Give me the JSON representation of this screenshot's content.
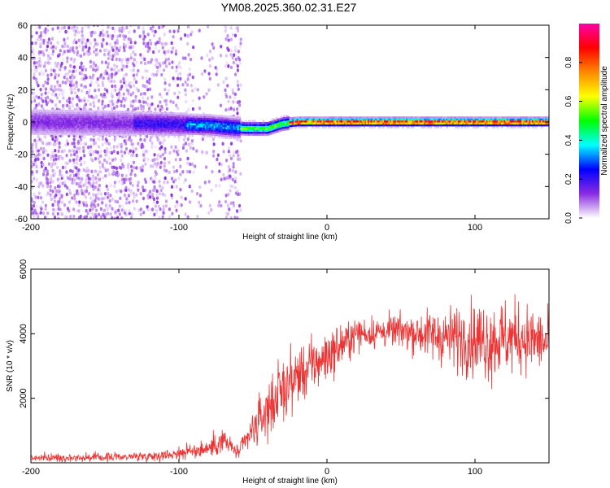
{
  "title": "YM08.2025.360.02.31.E27",
  "chart_data": [
    {
      "type": "heatmap",
      "title": "YM08.2025.360.02.31.E27",
      "xlabel": "Height of straight line (km)",
      "ylabel": "Frequency (Hz)",
      "xlim": [
        -200,
        150
      ],
      "ylim": [
        -60,
        60
      ],
      "xticks": [
        -200,
        -100,
        0,
        100
      ],
      "yticks": [
        -60,
        -40,
        -20,
        0,
        20,
        40,
        60
      ],
      "colorbar": {
        "label": "Normalized spectral amplitude",
        "range": [
          0,
          1
        ],
        "ticks": [
          0.0,
          0.2,
          0.4,
          0.6,
          0.8
        ],
        "tick_labels": [
          "0.0",
          "0.2",
          "0.4",
          "0.6",
          "0.8"
        ],
        "colormap": [
          "#ffffff",
          "#8a2be2",
          "#0000ff",
          "#00ffff",
          "#00ff00",
          "#ffff00",
          "#ff8800",
          "#ff0000",
          "#ff00aa"
        ]
      },
      "features": {
        "noise_region_km": [
          -200,
          -58
        ],
        "signal_start_km": -55,
        "signal_ridge_points": [
          {
            "x": -200,
            "y": 0
          },
          {
            "x": -120,
            "y": -1
          },
          {
            "x": -80,
            "y": -2
          },
          {
            "x": -55,
            "y": -4
          },
          {
            "x": -40,
            "y": -4
          },
          {
            "x": -30,
            "y": -1
          },
          {
            "x": -20,
            "y": 0
          },
          {
            "x": 150,
            "y": 0
          }
        ]
      }
    },
    {
      "type": "line",
      "xlabel": "Height of straight line (km)",
      "ylabel": "SNR (10 * v/v)",
      "xlim": [
        -200,
        150
      ],
      "ylim": [
        0,
        6000
      ],
      "xticks": [
        -200,
        -100,
        0,
        100
      ],
      "yticks": [
        2000,
        4000,
        6000
      ],
      "series": [
        {
          "name": "SNR",
          "color": "#ee3333",
          "envelope": [
            {
              "x": -200,
              "mean": 150,
              "spread": 120
            },
            {
              "x": -150,
              "mean": 170,
              "spread": 130
            },
            {
              "x": -110,
              "mean": 230,
              "spread": 150
            },
            {
              "x": -80,
              "mean": 450,
              "spread": 300
            },
            {
              "x": -70,
              "mean": 700,
              "spread": 400
            },
            {
              "x": -60,
              "mean": 300,
              "spread": 200
            },
            {
              "x": -50,
              "mean": 1000,
              "spread": 600
            },
            {
              "x": -35,
              "mean": 2000,
              "spread": 1000
            },
            {
              "x": -20,
              "mean": 2700,
              "spread": 900
            },
            {
              "x": 0,
              "mean": 3300,
              "spread": 800
            },
            {
              "x": 20,
              "mean": 4000,
              "spread": 500
            },
            {
              "x": 50,
              "mean": 4100,
              "spread": 500
            },
            {
              "x": 80,
              "mean": 3900,
              "spread": 900
            },
            {
              "x": 110,
              "mean": 3800,
              "spread": 1300
            },
            {
              "x": 130,
              "mean": 3900,
              "spread": 1100
            },
            {
              "x": 150,
              "mean": 3700,
              "spread": 900
            }
          ]
        }
      ]
    }
  ]
}
